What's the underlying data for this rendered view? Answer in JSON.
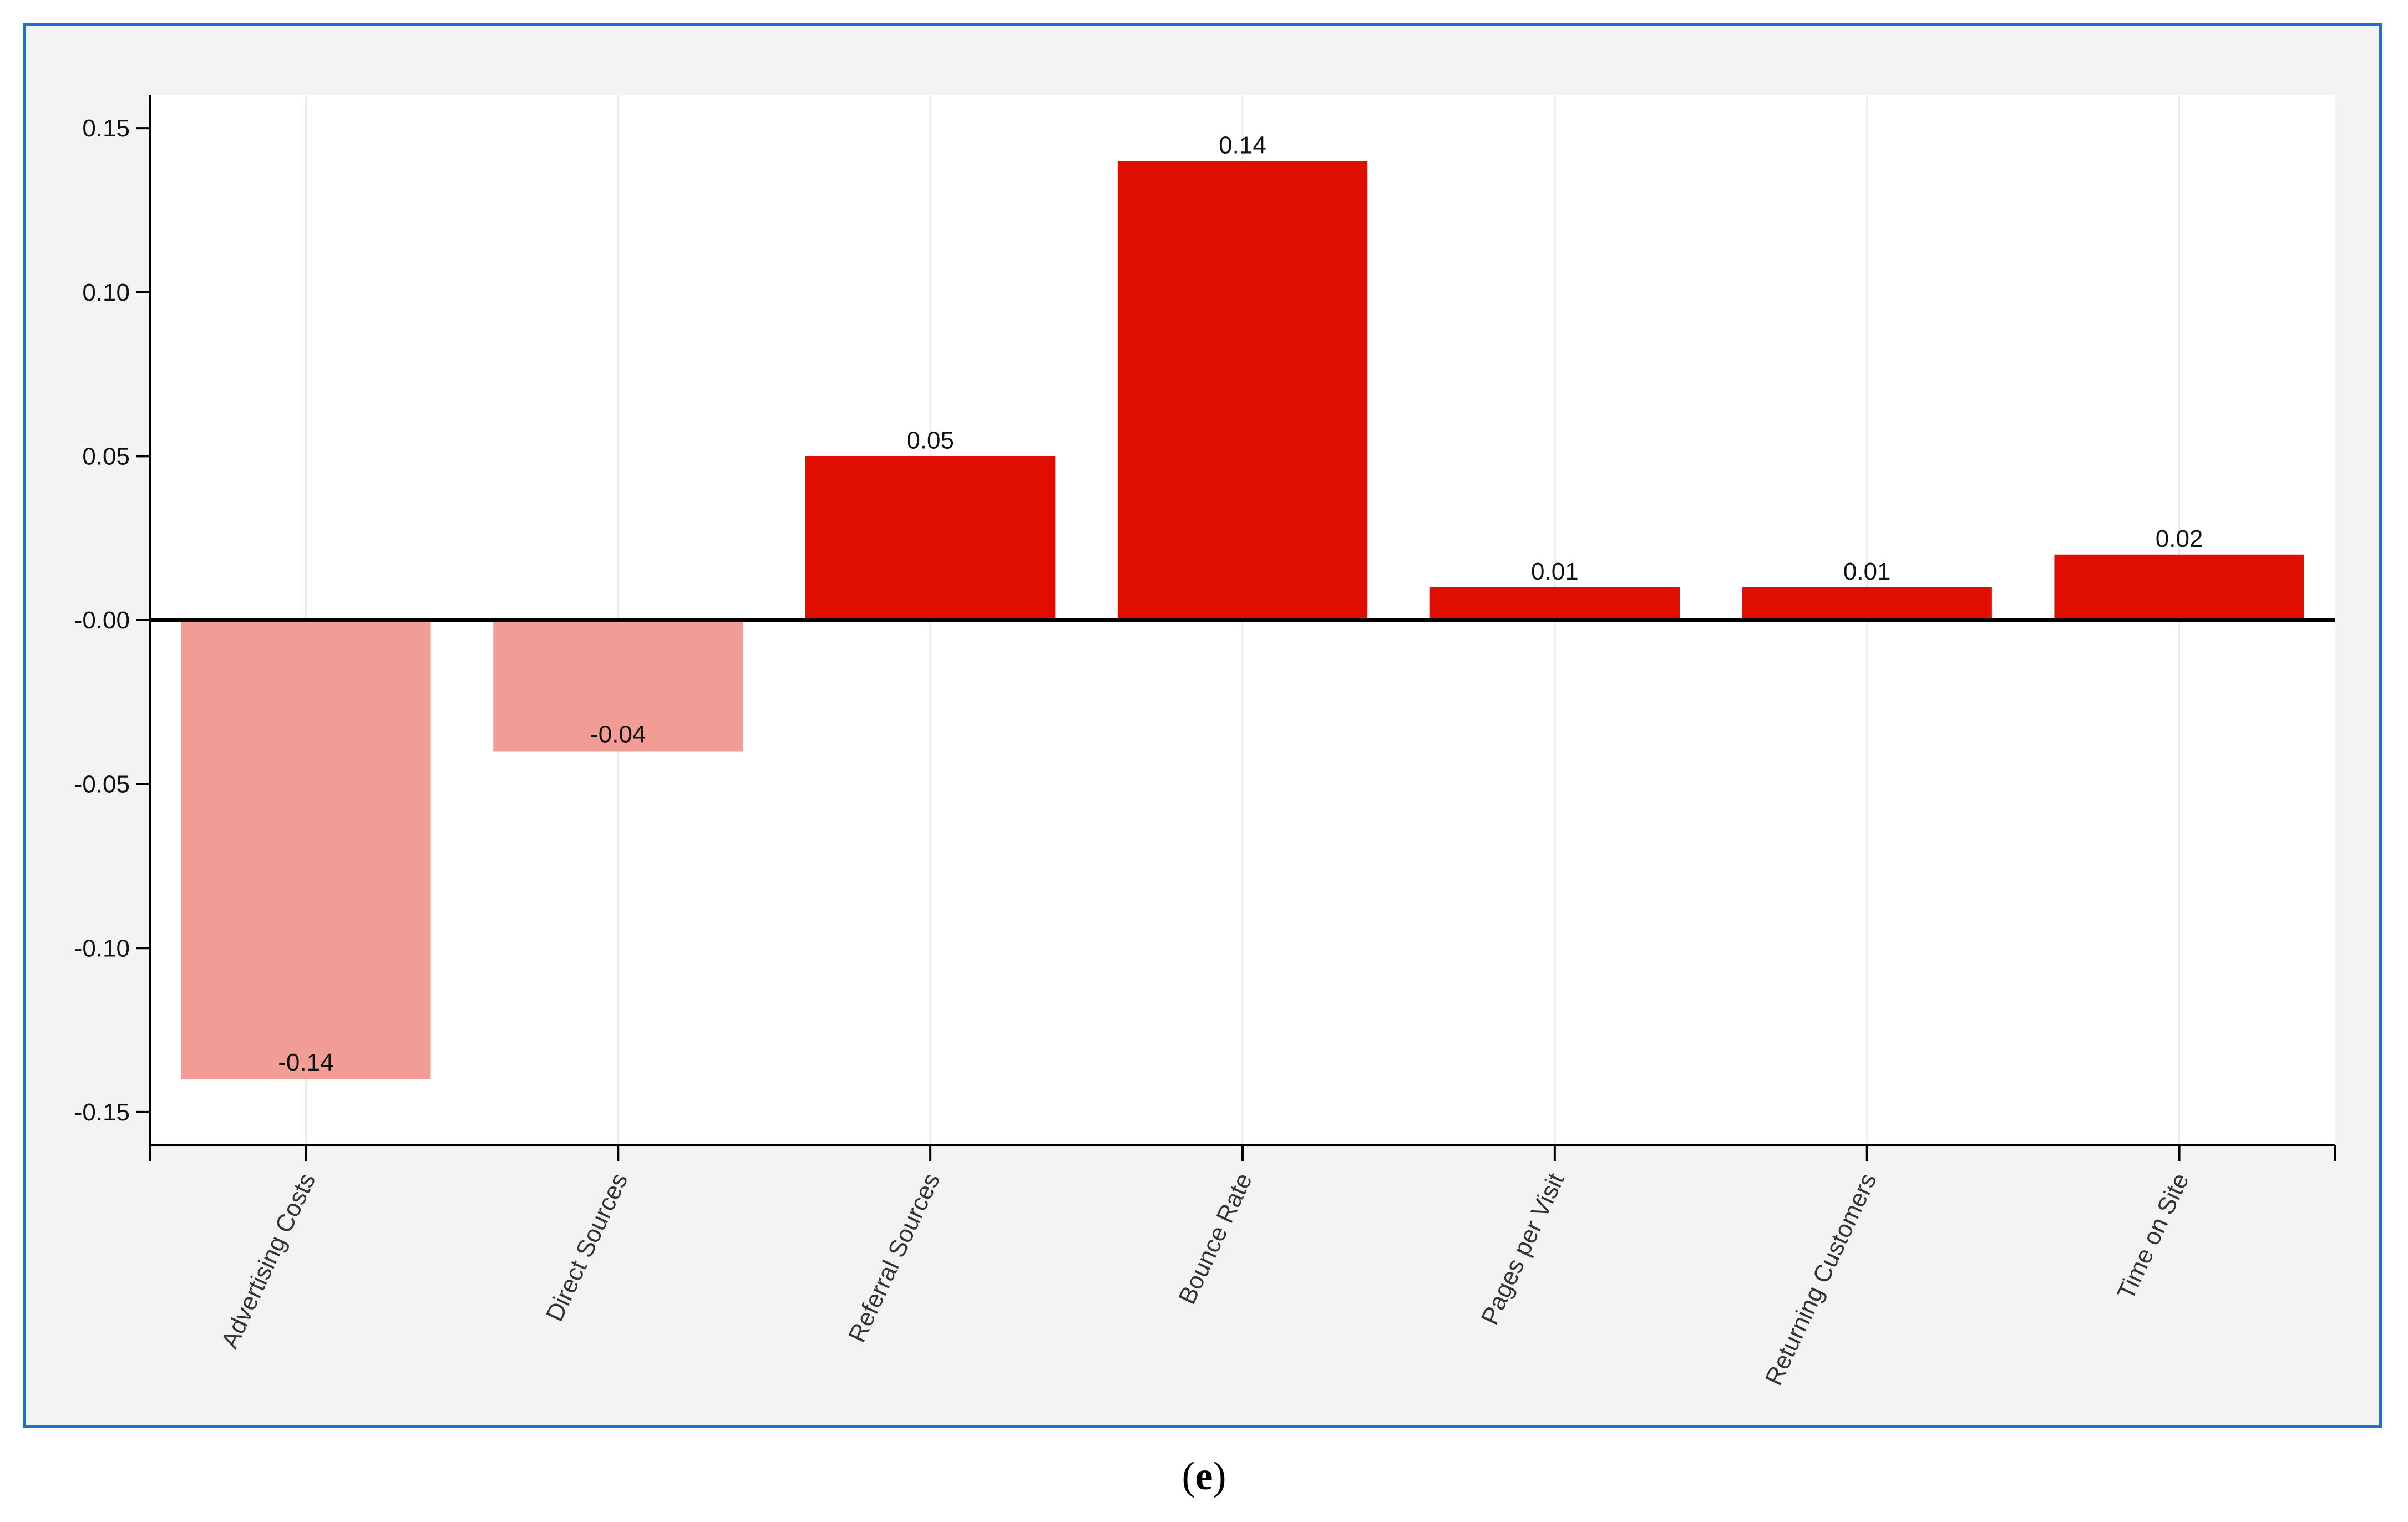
{
  "caption": {
    "open": "(",
    "letter": "e",
    "close": ")"
  },
  "colors": {
    "positive": "#e00e00",
    "negative": "#f29c96",
    "frame": "#1e6fcf",
    "plot_bg": "#ffffff",
    "outer_bg": "#f3f3f3"
  },
  "chart_data": {
    "type": "bar",
    "categories": [
      "Advertising Costs",
      "Direct Sources",
      "Referral Sources",
      "Bounce Rate",
      "Pages per Visit",
      "Returning Customers",
      "Time on Site"
    ],
    "values": [
      -0.14,
      -0.04,
      0.05,
      0.14,
      0.01,
      0.01,
      0.02
    ],
    "value_labels": [
      "-0.14",
      "-0.04",
      "0.05",
      "0.14",
      "0.01",
      "0.01",
      "0.02"
    ],
    "y_ticks": [
      0.15,
      0.1,
      0.05,
      0.0,
      -0.05,
      -0.1,
      -0.15
    ],
    "y_tick_labels": [
      "0.15",
      "0.10",
      "0.05",
      "-0.00",
      "-0.05",
      "-0.10",
      "-0.15"
    ],
    "ylim": [
      -0.16,
      0.16
    ],
    "title": "",
    "xlabel": "",
    "ylabel": "",
    "grid": "vertical-light",
    "legend": "none"
  }
}
